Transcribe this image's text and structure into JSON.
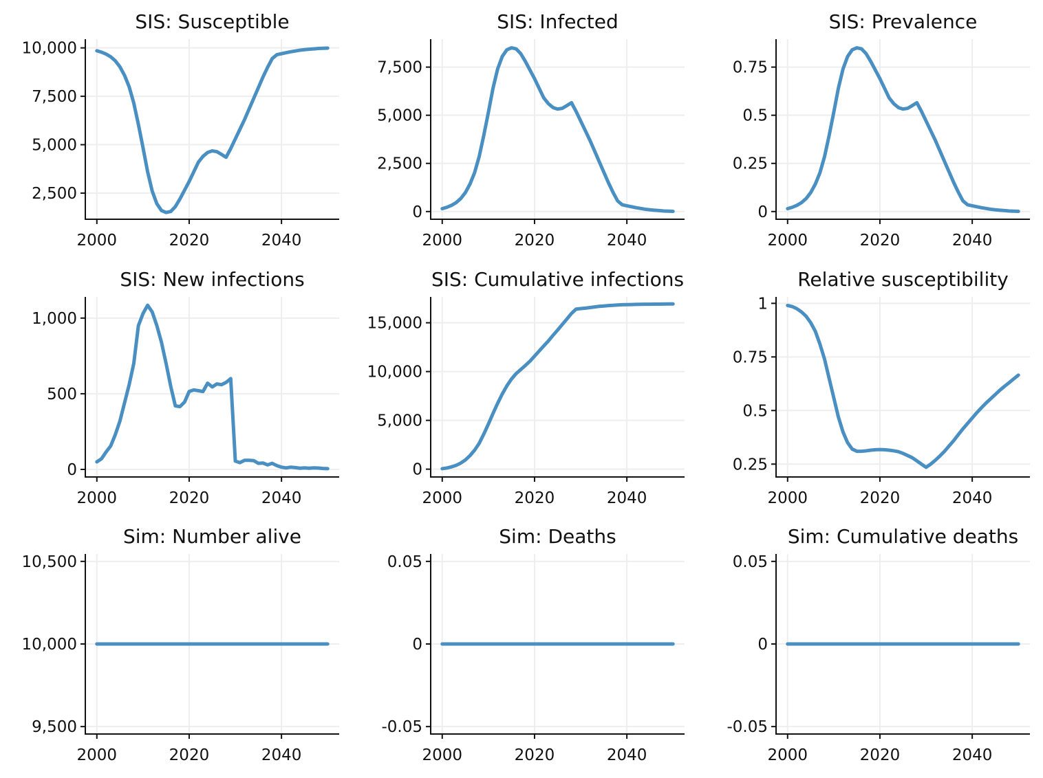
{
  "colors": {
    "series": "#4a8fc2",
    "axis": "#111111",
    "grid": "#eeeeee"
  },
  "chart_data": [
    {
      "type": "line",
      "title": "SIS: Susceptible",
      "xlabel": "",
      "ylabel": "",
      "xlim": [
        1997.5,
        2052.5
      ],
      "ylim": [
        1150,
        10450
      ],
      "xticks": [
        2000,
        2020,
        2040
      ],
      "xtick_labels": [
        "2000",
        "2020",
        "2040"
      ],
      "yticks": [
        2500,
        5000,
        7500,
        10000
      ],
      "ytick_labels": [
        "2,500",
        "5,000",
        "7,500",
        "10,000"
      ],
      "grid": true,
      "x": [
        2000,
        2001,
        2002,
        2003,
        2004,
        2005,
        2006,
        2007,
        2008,
        2009,
        2010,
        2011,
        2012,
        2013,
        2014,
        2015,
        2016,
        2017,
        2018,
        2019,
        2020,
        2021,
        2022,
        2023,
        2024,
        2025,
        2026,
        2027,
        2028,
        2029,
        2030,
        2031,
        2032,
        2033,
        2034,
        2035,
        2036,
        2037,
        2038,
        2039,
        2040,
        2041,
        2042,
        2043,
        2044,
        2045,
        2046,
        2047,
        2048,
        2049,
        2050
      ],
      "series": [
        {
          "values": [
            9850,
            9780,
            9680,
            9540,
            9330,
            9020,
            8580,
            7990,
            7150,
            6050,
            4850,
            3600,
            2600,
            1950,
            1600,
            1500,
            1550,
            1800,
            2200,
            2650,
            3100,
            3600,
            4100,
            4400,
            4600,
            4680,
            4640,
            4500,
            4350,
            4800,
            5300,
            5800,
            6300,
            6850,
            7400,
            7950,
            8500,
            9000,
            9450,
            9650,
            9700,
            9750,
            9800,
            9840,
            9880,
            9910,
            9930,
            9950,
            9970,
            9980,
            9990
          ]
        }
      ]
    },
    {
      "type": "line",
      "title": "SIS: Infected",
      "xlabel": "",
      "ylabel": "",
      "xlim": [
        1997.5,
        2052.5
      ],
      "ylim": [
        -400,
        8950
      ],
      "xticks": [
        2000,
        2020,
        2040
      ],
      "xtick_labels": [
        "2000",
        "2020",
        "2040"
      ],
      "yticks": [
        0,
        2500,
        5000,
        7500
      ],
      "ytick_labels": [
        "0",
        "2,500",
        "5,000",
        "7,500"
      ],
      "grid": true,
      "x": [
        2000,
        2001,
        2002,
        2003,
        2004,
        2005,
        2006,
        2007,
        2008,
        2009,
        2010,
        2011,
        2012,
        2013,
        2014,
        2015,
        2016,
        2017,
        2018,
        2019,
        2020,
        2021,
        2022,
        2023,
        2024,
        2025,
        2026,
        2027,
        2028,
        2029,
        2030,
        2031,
        2032,
        2033,
        2034,
        2035,
        2036,
        2037,
        2038,
        2039,
        2040,
        2041,
        2042,
        2043,
        2044,
        2045,
        2046,
        2047,
        2048,
        2049,
        2050
      ],
      "series": [
        {
          "values": [
            150,
            220,
            320,
            460,
            670,
            980,
            1420,
            2010,
            2850,
            3950,
            5150,
            6400,
            7400,
            8050,
            8400,
            8500,
            8450,
            8200,
            7800,
            7350,
            6900,
            6400,
            5900,
            5600,
            5400,
            5320,
            5360,
            5500,
            5650,
            5200,
            4700,
            4200,
            3700,
            3150,
            2600,
            2050,
            1500,
            1000,
            550,
            350,
            300,
            250,
            200,
            160,
            120,
            90,
            70,
            50,
            30,
            20,
            10
          ]
        }
      ]
    },
    {
      "type": "line",
      "title": "SIS: Prevalence",
      "xlabel": "",
      "ylabel": "",
      "xlim": [
        1997.5,
        2052.5
      ],
      "ylim": [
        -0.04,
        0.895
      ],
      "xticks": [
        2000,
        2020,
        2040
      ],
      "xtick_labels": [
        "2000",
        "2020",
        "2040"
      ],
      "yticks": [
        0,
        0.25,
        0.5,
        0.75
      ],
      "ytick_labels": [
        "0",
        "0.25",
        "0.5",
        "0.75"
      ],
      "grid": true,
      "x": [
        2000,
        2001,
        2002,
        2003,
        2004,
        2005,
        2006,
        2007,
        2008,
        2009,
        2010,
        2011,
        2012,
        2013,
        2014,
        2015,
        2016,
        2017,
        2018,
        2019,
        2020,
        2021,
        2022,
        2023,
        2024,
        2025,
        2026,
        2027,
        2028,
        2029,
        2030,
        2031,
        2032,
        2033,
        2034,
        2035,
        2036,
        2037,
        2038,
        2039,
        2040,
        2041,
        2042,
        2043,
        2044,
        2045,
        2046,
        2047,
        2048,
        2049,
        2050
      ],
      "series": [
        {
          "values": [
            0.015,
            0.022,
            0.032,
            0.046,
            0.067,
            0.098,
            0.142,
            0.201,
            0.285,
            0.395,
            0.515,
            0.64,
            0.74,
            0.805,
            0.84,
            0.85,
            0.845,
            0.82,
            0.78,
            0.735,
            0.69,
            0.64,
            0.59,
            0.56,
            0.54,
            0.532,
            0.536,
            0.55,
            0.565,
            0.52,
            0.47,
            0.42,
            0.37,
            0.315,
            0.26,
            0.205,
            0.15,
            0.1,
            0.055,
            0.035,
            0.03,
            0.025,
            0.02,
            0.016,
            0.012,
            0.009,
            0.007,
            0.005,
            0.003,
            0.002,
            0.001
          ]
        }
      ]
    },
    {
      "type": "line",
      "title": "SIS: New infections",
      "xlabel": "",
      "ylabel": "",
      "xlim": [
        1997.5,
        2052.5
      ],
      "ylim": [
        -50,
        1140
      ],
      "xticks": [
        2000,
        2020,
        2040
      ],
      "xtick_labels": [
        "2000",
        "2020",
        "2040"
      ],
      "yticks": [
        0,
        500,
        1000
      ],
      "ytick_labels": [
        "0",
        "500",
        "1,000"
      ],
      "grid": true,
      "x": [
        2000,
        2001,
        2002,
        2003,
        2004,
        2005,
        2006,
        2007,
        2008,
        2009,
        2010,
        2011,
        2012,
        2013,
        2014,
        2015,
        2016,
        2017,
        2018,
        2019,
        2020,
        2021,
        2022,
        2023,
        2024,
        2025,
        2026,
        2027,
        2028,
        2029,
        2030,
        2031,
        2032,
        2033,
        2034,
        2035,
        2036,
        2037,
        2038,
        2039,
        2040,
        2041,
        2042,
        2043,
        2044,
        2045,
        2046,
        2047,
        2048,
        2049,
        2050
      ],
      "series": [
        {
          "values": [
            50,
            70,
            115,
            155,
            230,
            320,
            440,
            560,
            700,
            950,
            1030,
            1085,
            1040,
            950,
            840,
            700,
            550,
            420,
            415,
            445,
            515,
            525,
            520,
            515,
            570,
            545,
            565,
            560,
            575,
            600,
            55,
            45,
            60,
            60,
            58,
            40,
            42,
            30,
            40,
            25,
            15,
            10,
            15,
            12,
            8,
            10,
            8,
            10,
            9,
            6,
            5
          ]
        }
      ]
    },
    {
      "type": "line",
      "title": "SIS: Cumulative infections",
      "xlabel": "",
      "ylabel": "",
      "xlim": [
        1997.5,
        2052.5
      ],
      "ylim": [
        -800,
        17650
      ],
      "xticks": [
        2000,
        2020,
        2040
      ],
      "xtick_labels": [
        "2000",
        "2020",
        "2040"
      ],
      "yticks": [
        0,
        5000,
        10000,
        15000
      ],
      "ytick_labels": [
        "0",
        "5,000",
        "10,000",
        "15,000"
      ],
      "grid": true,
      "x": [
        2000,
        2001,
        2002,
        2003,
        2004,
        2005,
        2006,
        2007,
        2008,
        2009,
        2010,
        2011,
        2012,
        2013,
        2014,
        2015,
        2016,
        2017,
        2018,
        2019,
        2020,
        2021,
        2022,
        2023,
        2024,
        2025,
        2026,
        2027,
        2028,
        2029,
        2030,
        2031,
        2032,
        2033,
        2034,
        2035,
        2036,
        2037,
        2038,
        2039,
        2040,
        2041,
        2042,
        2043,
        2044,
        2045,
        2046,
        2047,
        2048,
        2049,
        2050
      ],
      "series": [
        {
          "values": [
            50,
            120,
            235,
            390,
            620,
            940,
            1380,
            1940,
            2640,
            3590,
            4620,
            5705,
            6745,
            7695,
            8535,
            9235,
            9785,
            10205,
            10620,
            11065,
            11580,
            12105,
            12625,
            13140,
            13710,
            14255,
            14820,
            15380,
            15955,
            16400,
            16450,
            16500,
            16560,
            16620,
            16680,
            16720,
            16760,
            16790,
            16820,
            16845,
            16860,
            16870,
            16880,
            16890,
            16900,
            16905,
            16910,
            16915,
            16920,
            16925,
            16930
          ]
        }
      ]
    },
    {
      "type": "line",
      "title": "Relative susceptibility",
      "xlabel": "",
      "ylabel": "",
      "xlim": [
        1997.5,
        2052.5
      ],
      "ylim": [
        0.19,
        1.03
      ],
      "xticks": [
        2000,
        2020,
        2040
      ],
      "xtick_labels": [
        "2000",
        "2020",
        "2040"
      ],
      "yticks": [
        0.25,
        0.5,
        0.75,
        1
      ],
      "ytick_labels": [
        "0.25",
        "0.5",
        "0.75",
        "1"
      ],
      "grid": true,
      "x": [
        2000,
        2001,
        2002,
        2003,
        2004,
        2005,
        2006,
        2007,
        2008,
        2009,
        2010,
        2011,
        2012,
        2013,
        2014,
        2015,
        2016,
        2017,
        2018,
        2019,
        2020,
        2021,
        2022,
        2023,
        2024,
        2025,
        2026,
        2027,
        2028,
        2029,
        2030,
        2031,
        2032,
        2033,
        2034,
        2035,
        2036,
        2037,
        2038,
        2039,
        2040,
        2041,
        2042,
        2043,
        2044,
        2045,
        2046,
        2047,
        2048,
        2049,
        2050
      ],
      "series": [
        {
          "values": [
            0.99,
            0.985,
            0.975,
            0.96,
            0.94,
            0.91,
            0.87,
            0.81,
            0.74,
            0.65,
            0.56,
            0.47,
            0.4,
            0.35,
            0.32,
            0.31,
            0.31,
            0.312,
            0.315,
            0.317,
            0.318,
            0.317,
            0.315,
            0.312,
            0.308,
            0.3,
            0.29,
            0.28,
            0.265,
            0.25,
            0.235,
            0.25,
            0.268,
            0.288,
            0.31,
            0.335,
            0.36,
            0.388,
            0.415,
            0.44,
            0.465,
            0.49,
            0.513,
            0.535,
            0.555,
            0.575,
            0.595,
            0.613,
            0.63,
            0.648,
            0.665
          ]
        }
      ]
    },
    {
      "type": "line",
      "title": "Sim: Number alive",
      "xlabel": "",
      "ylabel": "",
      "xlim": [
        1997.5,
        2052.5
      ],
      "ylim": [
        9455,
        10545
      ],
      "xticks": [
        2000,
        2020,
        2040
      ],
      "xtick_labels": [
        "2000",
        "2020",
        "2040"
      ],
      "yticks": [
        9500,
        10000,
        10500
      ],
      "ytick_labels": [
        "9,500",
        "10,000",
        "10,500"
      ],
      "grid": true,
      "x": [
        2000,
        2050
      ],
      "series": [
        {
          "values": [
            10000,
            10000
          ]
        }
      ]
    },
    {
      "type": "line",
      "title": "Sim: Deaths",
      "xlabel": "",
      "ylabel": "",
      "xlim": [
        1997.5,
        2052.5
      ],
      "ylim": [
        -0.0545,
        0.0545
      ],
      "xticks": [
        2000,
        2020,
        2040
      ],
      "xtick_labels": [
        "2000",
        "2020",
        "2040"
      ],
      "yticks": [
        -0.05,
        0,
        0.05
      ],
      "ytick_labels": [
        "-0.05",
        "0",
        "0.05"
      ],
      "grid": true,
      "x": [
        2000,
        2050
      ],
      "series": [
        {
          "values": [
            0,
            0
          ]
        }
      ]
    },
    {
      "type": "line",
      "title": "Sim: Cumulative deaths",
      "xlabel": "",
      "ylabel": "",
      "xlim": [
        1997.5,
        2052.5
      ],
      "ylim": [
        -0.0545,
        0.0545
      ],
      "xticks": [
        2000,
        2020,
        2040
      ],
      "xtick_labels": [
        "2000",
        "2020",
        "2040"
      ],
      "yticks": [
        -0.05,
        0,
        0.05
      ],
      "ytick_labels": [
        "-0.05",
        "0",
        "0.05"
      ],
      "grid": true,
      "x": [
        2000,
        2050
      ],
      "series": [
        {
          "values": [
            0,
            0
          ]
        }
      ]
    }
  ]
}
